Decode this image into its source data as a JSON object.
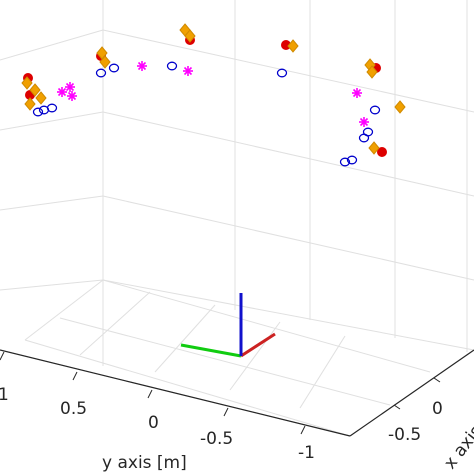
{
  "chart_data": {
    "type": "scatter",
    "projection": "3d",
    "grid": "on",
    "xlabel": "x axis [m]",
    "ylabel": "y axis [m]",
    "y_ticks": [
      "1",
      "0.5",
      "0",
      "-0.5",
      "-1"
    ],
    "x_ticks": [
      "0",
      "-0.5"
    ],
    "series": [
      {
        "marker": "filled-circle",
        "color": "#dd0000",
        "points": [
          [
            28,
            78
          ],
          [
            30,
            95
          ],
          [
            101,
            56
          ],
          [
            190,
            40
          ],
          [
            286,
            45
          ],
          [
            376,
            68
          ],
          [
            382,
            152
          ]
        ]
      },
      {
        "marker": "filled-diamond",
        "color": "#f0a000",
        "points": [
          [
            27,
            83
          ],
          [
            35,
            90
          ],
          [
            41,
            98
          ],
          [
            30,
            104
          ],
          [
            102,
            53
          ],
          [
            105,
            62
          ],
          [
            185,
            30
          ],
          [
            190,
            36
          ],
          [
            293,
            46
          ],
          [
            370,
            65
          ],
          [
            372,
            72
          ],
          [
            400,
            107
          ],
          [
            374,
            148
          ]
        ]
      },
      {
        "marker": "circle",
        "color": "#0000cc",
        "points": [
          [
            38,
            112
          ],
          [
            44,
            110
          ],
          [
            52,
            108
          ],
          [
            101,
            73
          ],
          [
            114,
            68
          ],
          [
            172,
            66
          ],
          [
            282,
            73
          ],
          [
            345,
            162
          ],
          [
            352,
            160
          ],
          [
            364,
            138
          ],
          [
            368,
            132
          ],
          [
            375,
            110
          ]
        ]
      },
      {
        "marker": "asterisk",
        "color": "#ff00ff",
        "points": [
          [
            62,
            92
          ],
          [
            70,
            87
          ],
          [
            72,
            96
          ],
          [
            142,
            66
          ],
          [
            188,
            71
          ],
          [
            357,
            93
          ],
          [
            364,
            122
          ]
        ]
      }
    ],
    "axes_triad": [
      {
        "label": "x",
        "color": "#cc2222"
      },
      {
        "label": "y",
        "color": "#11cc11"
      },
      {
        "label": "z",
        "color": "#1111cc"
      }
    ]
  }
}
